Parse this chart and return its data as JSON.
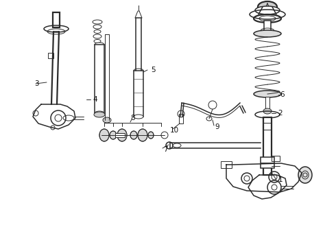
{
  "bg_color": "#ffffff",
  "line_color": "#2a2a2a",
  "label_color": "#111111",
  "lw_thin": 0.7,
  "lw_med": 1.1,
  "lw_thick": 1.6,
  "figw": 4.9,
  "figh": 3.6,
  "dpi": 100,
  "xlim": [
    0,
    490
  ],
  "ylim": [
    0,
    360
  ]
}
